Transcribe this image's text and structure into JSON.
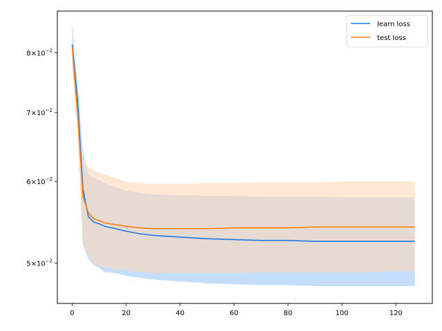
{
  "chart_data": {
    "type": "line",
    "title": "",
    "xlabel": "",
    "ylabel": "",
    "yscale": "log",
    "grid": false,
    "legend_position": "top-right",
    "xlim": [
      -5.5,
      133.5
    ],
    "ylim": [
      0.0457,
      0.0878
    ],
    "x_ticks": [
      0,
      20,
      40,
      60,
      80,
      100,
      120
    ],
    "y_ticks": [
      {
        "value": 0.05,
        "mantissa": "5",
        "exp": "−2"
      },
      {
        "value": 0.06,
        "mantissa": "6",
        "exp": "−2"
      },
      {
        "value": 0.07,
        "mantissa": "7",
        "exp": "−2"
      },
      {
        "value": 0.08,
        "mantissa": "8",
        "exp": "−2"
      }
    ],
    "series": [
      {
        "name": "learn loss",
        "color": "#1f77e4",
        "band_color": "#b9d7fa",
        "points": [
          [
            0,
            0.0815,
            0.0855,
            0.078
          ],
          [
            2,
            0.072,
            0.0745,
            0.068
          ],
          [
            4,
            0.059,
            0.064,
            0.052
          ],
          [
            6,
            0.0555,
            0.061,
            0.0505
          ],
          [
            8,
            0.0548,
            0.0605,
            0.0498
          ],
          [
            10,
            0.0546,
            0.0602,
            0.0495
          ],
          [
            12,
            0.0543,
            0.0598,
            0.049
          ],
          [
            16,
            0.054,
            0.0592,
            0.0489
          ],
          [
            20,
            0.0537,
            0.0588,
            0.0486
          ],
          [
            25,
            0.0534,
            0.0585,
            0.0484
          ],
          [
            30,
            0.0532,
            0.0583,
            0.0482
          ],
          [
            40,
            0.053,
            0.0582,
            0.048
          ],
          [
            50,
            0.0528,
            0.0581,
            0.0478
          ],
          [
            60,
            0.0527,
            0.0581,
            0.0477
          ],
          [
            70,
            0.0526,
            0.058,
            0.0476
          ],
          [
            80,
            0.0526,
            0.058,
            0.0476
          ],
          [
            90,
            0.0525,
            0.058,
            0.0475
          ],
          [
            100,
            0.0525,
            0.0579,
            0.0475
          ],
          [
            110,
            0.0525,
            0.0579,
            0.0475
          ],
          [
            120,
            0.0525,
            0.0579,
            0.0475
          ],
          [
            127,
            0.0525,
            0.0579,
            0.0475
          ]
        ]
      },
      {
        "name": "test loss",
        "color": "#ff7f0e",
        "band_color": "#fdd9b9",
        "points": [
          [
            0,
            0.081,
            0.084,
            0.078
          ],
          [
            2,
            0.07,
            0.072,
            0.067
          ],
          [
            4,
            0.058,
            0.063,
            0.052
          ],
          [
            6,
            0.056,
            0.062,
            0.051
          ],
          [
            8,
            0.0552,
            0.0615,
            0.05
          ],
          [
            10,
            0.055,
            0.0612,
            0.0497
          ],
          [
            12,
            0.0547,
            0.061,
            0.0495
          ],
          [
            16,
            0.0545,
            0.0605,
            0.0493
          ],
          [
            20,
            0.0543,
            0.06,
            0.0492
          ],
          [
            25,
            0.0541,
            0.0598,
            0.049
          ],
          [
            30,
            0.054,
            0.0597,
            0.0489
          ],
          [
            40,
            0.054,
            0.0597,
            0.0489
          ],
          [
            50,
            0.054,
            0.0598,
            0.0489
          ],
          [
            60,
            0.0541,
            0.0598,
            0.0489
          ],
          [
            70,
            0.0541,
            0.0599,
            0.049
          ],
          [
            80,
            0.0541,
            0.0599,
            0.049
          ],
          [
            90,
            0.0542,
            0.0599,
            0.049
          ],
          [
            100,
            0.0542,
            0.06,
            0.049
          ],
          [
            110,
            0.0542,
            0.06,
            0.049
          ],
          [
            120,
            0.0542,
            0.06,
            0.0491
          ],
          [
            127,
            0.0542,
            0.06,
            0.0491
          ]
        ]
      }
    ]
  }
}
